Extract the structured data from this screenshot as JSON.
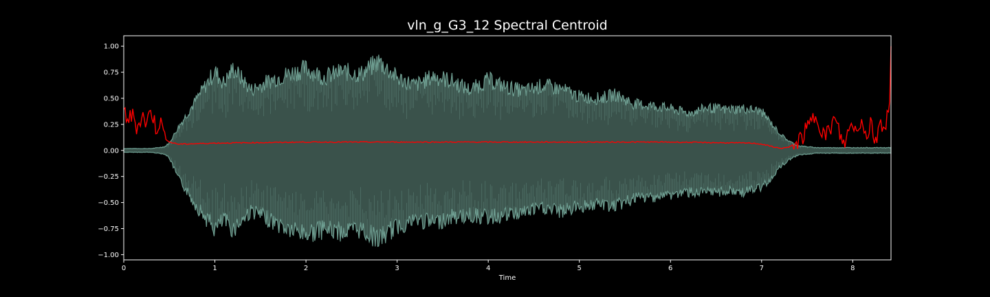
{
  "chart_data": {
    "type": "area",
    "title": "vln_g_G3_12 Spectral Centroid",
    "xlabel": "Time",
    "ylabel": "",
    "xlim": [
      0,
      8.42
    ],
    "ylim": [
      -1.05,
      1.1
    ],
    "x_ticks": [
      0,
      1,
      2,
      3,
      4,
      5,
      6,
      7,
      8
    ],
    "x_tick_labels": [
      "0",
      "1",
      "2",
      "3",
      "4",
      "5",
      "6",
      "7",
      "8"
    ],
    "y_ticks": [
      1.0,
      0.75,
      0.5,
      0.25,
      0.0,
      -0.25,
      -0.5,
      -0.75,
      -1.0
    ],
    "y_tick_labels": [
      "1.00",
      "0.75",
      "0.50",
      "0.25",
      "0.00",
      "−0.25",
      "−0.50",
      "−0.75",
      "−1.00"
    ],
    "grid": false,
    "colors": {
      "background": "#000000",
      "axes": "#ffffff",
      "waveform_fill": "#3a524b",
      "waveform_edge": "#6f9f92",
      "centroid": "#ff0000"
    },
    "series": [
      {
        "kind": "waveform-envelope",
        "x": [
          0,
          0.3,
          0.45,
          0.5,
          0.6,
          0.8,
          1.0,
          1.1,
          1.2,
          1.4,
          1.6,
          1.8,
          2.0,
          2.2,
          2.4,
          2.6,
          2.8,
          3.0,
          3.2,
          3.4,
          3.6,
          3.8,
          4.0,
          4.2,
          4.4,
          4.6,
          4.8,
          5.0,
          5.2,
          5.4,
          5.6,
          5.8,
          6.0,
          6.2,
          6.4,
          6.6,
          6.8,
          7.0,
          7.1,
          7.2,
          7.3,
          7.4,
          7.6,
          8.0,
          8.42
        ],
        "upper": [
          0.02,
          0.02,
          0.04,
          0.08,
          0.25,
          0.55,
          0.85,
          0.72,
          0.88,
          0.65,
          0.75,
          0.82,
          0.88,
          0.79,
          0.85,
          0.82,
          0.96,
          0.78,
          0.7,
          0.8,
          0.75,
          0.65,
          0.76,
          0.68,
          0.64,
          0.7,
          0.66,
          0.58,
          0.56,
          0.6,
          0.5,
          0.48,
          0.45,
          0.4,
          0.46,
          0.44,
          0.45,
          0.42,
          0.3,
          0.18,
          0.1,
          0.05,
          0.03,
          0.03,
          0.03
        ],
        "lower": [
          -0.02,
          -0.02,
          -0.04,
          -0.08,
          -0.3,
          -0.6,
          -0.85,
          -0.75,
          -0.85,
          -0.65,
          -0.75,
          -0.85,
          -0.9,
          -0.85,
          -0.88,
          -0.85,
          -0.96,
          -0.82,
          -0.75,
          -0.78,
          -0.72,
          -0.7,
          -0.72,
          -0.7,
          -0.66,
          -0.62,
          -0.66,
          -0.6,
          -0.58,
          -0.6,
          -0.52,
          -0.5,
          -0.48,
          -0.45,
          -0.46,
          -0.44,
          -0.45,
          -0.4,
          -0.3,
          -0.18,
          -0.1,
          -0.05,
          -0.03,
          -0.03,
          -0.03
        ]
      },
      {
        "kind": "centroid-line",
        "x": [
          0,
          0.05,
          0.1,
          0.15,
          0.2,
          0.25,
          0.3,
          0.35,
          0.4,
          0.45,
          0.5,
          0.6,
          1.0,
          2.0,
          3.0,
          4.0,
          5.0,
          6.0,
          6.9,
          7.0,
          7.1,
          7.2,
          7.3,
          7.4,
          7.5,
          7.6,
          7.7,
          7.8,
          7.9,
          8.0,
          8.05,
          8.1,
          8.15,
          8.2,
          8.25,
          8.3,
          8.35,
          8.38,
          8.4,
          8.42
        ],
        "y": [
          0.38,
          0.3,
          0.33,
          0.22,
          0.35,
          0.25,
          0.4,
          0.22,
          0.28,
          0.12,
          0.08,
          0.06,
          0.07,
          0.08,
          0.08,
          0.08,
          0.08,
          0.08,
          0.07,
          0.06,
          0.04,
          0.02,
          0.03,
          0.08,
          0.2,
          0.35,
          0.12,
          0.3,
          0.05,
          0.28,
          0.15,
          0.35,
          0.1,
          0.3,
          0.05,
          0.32,
          0.2,
          0.38,
          0.25,
          1.0
        ]
      }
    ]
  }
}
